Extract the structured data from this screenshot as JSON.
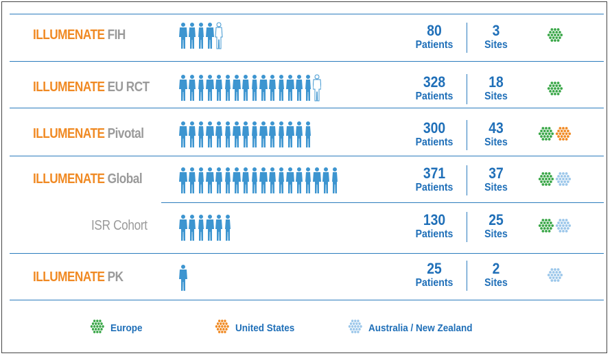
{
  "colors": {
    "brand_orange": "#f08a24",
    "title_gray": "#9a9a9a",
    "stat_blue": "#1f6fb8",
    "person_blue": "#3d95d0",
    "europe_green": "#3aa748",
    "us_orange": "#f08a24",
    "anz_lightblue": "#9cc7ea"
  },
  "rows": [
    {
      "brand": "ILLUMENATE",
      "name": "FIH",
      "patients": "80",
      "patients_label": "Patients",
      "sites": "3",
      "sites_label": "Sites",
      "regions": [
        "europe"
      ],
      "people": 5
    },
    {
      "brand": "ILLUMENATE",
      "name": "EU RCT",
      "patients": "328",
      "patients_label": "Patients",
      "sites": "18",
      "sites_label": "Sites",
      "regions": [
        "europe"
      ],
      "people": 16
    },
    {
      "brand": "ILLUMENATE",
      "name": "Pivotal",
      "patients": "300",
      "patients_label": "Patients",
      "sites": "43",
      "sites_label": "Sites",
      "regions": [
        "europe",
        "us"
      ],
      "people": 15
    },
    {
      "brand": "ILLUMENATE",
      "name": "Global",
      "patients": "371",
      "patients_label": "Patients",
      "sites": "37",
      "sites_label": "Sites",
      "regions": [
        "europe",
        "anz"
      ],
      "people": 18
    },
    {
      "brand": "",
      "name": "ISR Cohort",
      "patients": "130",
      "patients_label": "Patients",
      "sites": "25",
      "sites_label": "Sites",
      "regions": [
        "europe",
        "anz"
      ],
      "people": 6
    },
    {
      "brand": "ILLUMENATE",
      "name": "PK",
      "patients": "25",
      "patients_label": "Patients",
      "sites": "2",
      "sites_label": "Sites",
      "regions": [
        "anz"
      ],
      "people": 1
    }
  ],
  "legend": [
    {
      "region": "europe",
      "label": "Europe"
    },
    {
      "region": "us",
      "label": "United States"
    },
    {
      "region": "anz",
      "label": "Australia / New Zealand"
    }
  ]
}
